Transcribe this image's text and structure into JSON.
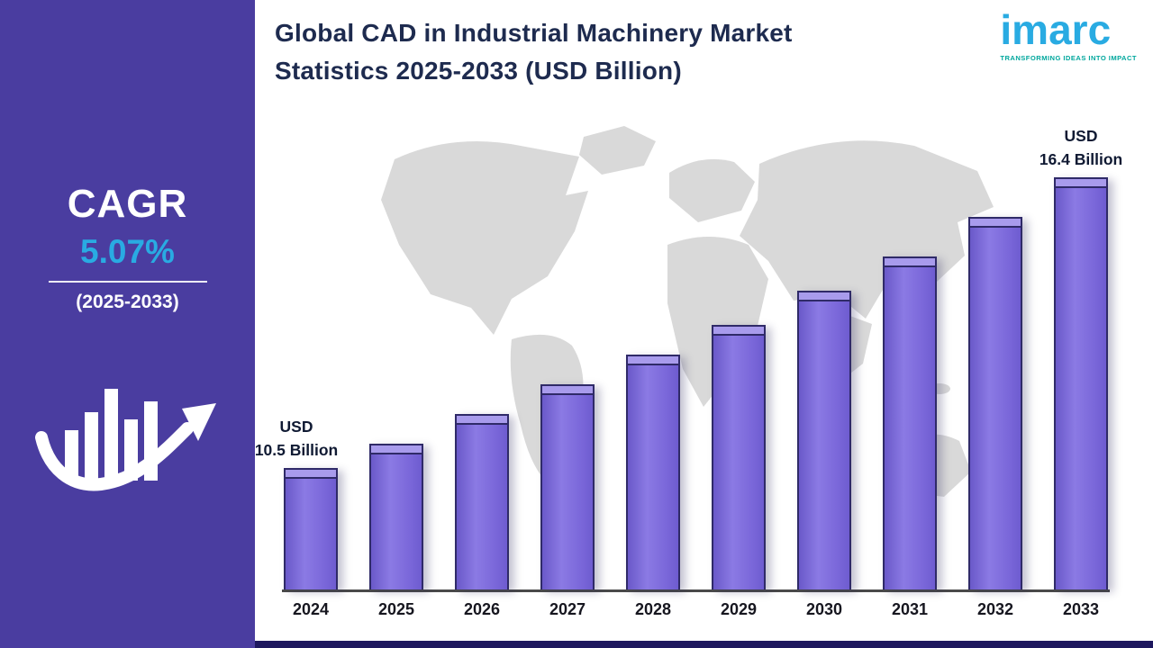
{
  "header": {
    "title_line1": "Global CAD in Industrial Machinery Market",
    "title_line2": "Statistics 2025-2033 (USD Billion)",
    "logo_text": "imarc",
    "logo_tagline": "TRANSFORMING IDEAS INTO IMPACT"
  },
  "sidebar": {
    "cagr_label": "CAGR",
    "cagr_value": "5.07%",
    "cagr_period": "(2025-2033)"
  },
  "chart_data": {
    "type": "bar",
    "title": "Global CAD in Industrial Machinery Market Statistics 2025-2033 (USD Billion)",
    "unit": "USD Billion",
    "categories": [
      "2024",
      "2025",
      "2026",
      "2027",
      "2028",
      "2029",
      "2030",
      "2031",
      "2032",
      "2033"
    ],
    "values": [
      10.5,
      11.0,
      11.6,
      12.2,
      12.8,
      13.4,
      14.1,
      14.8,
      15.6,
      16.4
    ],
    "ylim": [
      10.5,
      16.4
    ],
    "grid": false,
    "legend": false,
    "xlabel": "",
    "ylabel": "",
    "cagr": "5.07%",
    "cagr_period": "2025-2033",
    "annotations": [
      {
        "category": "2024",
        "line1": "USD",
        "line2": "10.5 Billion"
      },
      {
        "category": "2033",
        "line1": "USD",
        "line2": "16.4 Billion"
      }
    ]
  },
  "colors": {
    "sidebar_bg": "#4A3DA0",
    "accent_cyan": "#29ABE2",
    "tagline_teal": "#00A79D",
    "title_navy": "#1E2B4F",
    "bar_fill": "#7B68DA",
    "bar_cap": "#A89BEC",
    "bar_border": "#2F2A68",
    "footer": "#1D175E",
    "map_gray": "#D7D7D7"
  }
}
